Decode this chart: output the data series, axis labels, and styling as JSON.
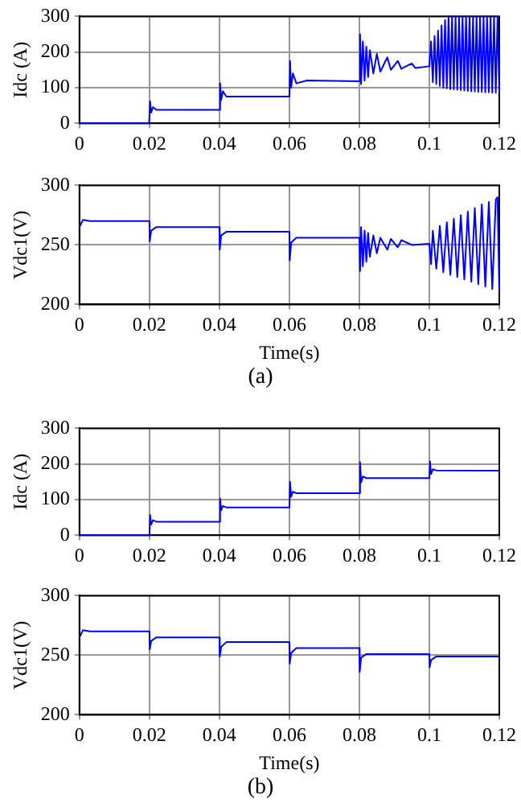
{
  "chart_data": [
    {
      "type": "line",
      "ylabel": "Idc (A)",
      "xlim": [
        0,
        0.12
      ],
      "ylim": [
        0,
        300
      ],
      "xticks": [
        0,
        0.02,
        0.04,
        0.06,
        0.08,
        0.1,
        0.12
      ],
      "yticks": [
        0,
        100,
        200,
        300
      ],
      "grid": true,
      "legend": false,
      "marker": "none",
      "line_style": "solid",
      "series": [
        {
          "color": "#0000ff",
          "x": [
            0,
            0.0199,
            0.02,
            0.0202,
            0.0205,
            0.021,
            0.022,
            0.04,
            0.0402,
            0.0405,
            0.041,
            0.042,
            0.06,
            0.0602,
            0.0605,
            0.061,
            0.062,
            0.065,
            0.08,
            0.0802,
            0.0805,
            0.081,
            0.0815,
            0.082,
            0.0825,
            0.083,
            0.084,
            0.085,
            0.086,
            0.088,
            0.089,
            0.091,
            0.092,
            0.095,
            0.096,
            0.1,
            0.1005,
            0.101,
            0.1015,
            0.102,
            0.1025,
            0.103,
            0.1035,
            0.104,
            0.1045,
            0.105,
            0.1055,
            0.106,
            0.1065,
            0.107,
            0.1075,
            0.108,
            0.1085,
            0.109,
            0.1095,
            0.11,
            0.1105,
            0.111,
            0.1115,
            0.112,
            0.1125,
            0.113,
            0.1135,
            0.114,
            0.1145,
            0.115,
            0.1155,
            0.116,
            0.1165,
            0.117,
            0.1175,
            0.118,
            0.1185,
            0.119,
            0.1195,
            0.12
          ],
          "values": [
            0,
            0,
            0,
            62,
            30,
            45,
            38,
            38,
            112,
            65,
            90,
            75,
            75,
            175,
            100,
            140,
            112,
            120,
            118,
            250,
            110,
            230,
            120,
            215,
            130,
            205,
            140,
            195,
            145,
            185,
            150,
            175,
            153,
            168,
            155,
            160,
            230,
            115,
            245,
            110,
            260,
            105,
            275,
            100,
            290,
            98,
            300,
            96,
            300,
            95,
            300,
            94,
            300,
            93,
            300,
            92,
            300,
            91,
            300,
            90,
            300,
            89,
            300,
            88,
            300,
            88,
            300,
            87,
            300,
            87,
            300,
            86,
            300,
            86,
            300,
            85
          ]
        }
      ]
    },
    {
      "type": "line",
      "xlabel": "Time(s)",
      "ylabel": "Vdc1(V)",
      "xlim": [
        0,
        0.12
      ],
      "ylim": [
        200,
        300
      ],
      "xticks": [
        0,
        0.02,
        0.04,
        0.06,
        0.08,
        0.1,
        0.12
      ],
      "yticks": [
        200,
        250,
        300
      ],
      "grid": true,
      "legend": false,
      "marker": "none",
      "line_style": "solid",
      "annotations": [
        "(a)"
      ],
      "series": [
        {
          "color": "#0000ff",
          "x": [
            0,
            0.001,
            0.003,
            0.02,
            0.0201,
            0.0205,
            0.022,
            0.04,
            0.0401,
            0.0405,
            0.042,
            0.06,
            0.0601,
            0.0605,
            0.062,
            0.08,
            0.0802,
            0.0805,
            0.081,
            0.0815,
            0.082,
            0.0825,
            0.083,
            0.084,
            0.085,
            0.086,
            0.088,
            0.089,
            0.091,
            0.092,
            0.095,
            0.1,
            0.1005,
            0.101,
            0.102,
            0.103,
            0.104,
            0.105,
            0.106,
            0.107,
            0.108,
            0.109,
            0.11,
            0.111,
            0.112,
            0.113,
            0.114,
            0.115,
            0.116,
            0.117,
            0.118,
            0.119,
            0.1195,
            0.12
          ],
          "values": [
            265,
            271,
            270,
            270,
            253,
            262,
            265,
            265,
            246,
            258,
            261,
            261,
            237,
            252,
            256,
            256,
            228,
            265,
            232,
            262,
            236,
            260,
            240,
            258,
            243,
            256,
            246,
            255,
            248,
            254,
            250,
            251,
            234,
            262,
            230,
            266,
            227,
            269,
            225,
            272,
            223,
            275,
            221,
            278,
            219,
            281,
            217,
            284,
            215,
            286,
            213,
            288,
            290,
            210
          ]
        }
      ]
    },
    {
      "type": "line",
      "ylabel": "Idc (A)",
      "xlim": [
        0,
        0.12
      ],
      "ylim": [
        0,
        300
      ],
      "xticks": [
        0,
        0.02,
        0.04,
        0.06,
        0.08,
        0.1,
        0.12
      ],
      "yticks": [
        0,
        100,
        200,
        300
      ],
      "grid": true,
      "legend": false,
      "marker": "none",
      "line_style": "solid",
      "series": [
        {
          "color": "#0000ff",
          "x": [
            0,
            0.02,
            0.0202,
            0.0205,
            0.021,
            0.022,
            0.04,
            0.0402,
            0.0405,
            0.041,
            0.042,
            0.06,
            0.0602,
            0.0605,
            0.061,
            0.062,
            0.08,
            0.0802,
            0.0805,
            0.081,
            0.082,
            0.1,
            0.1002,
            0.1005,
            0.101,
            0.102,
            0.12
          ],
          "values": [
            0,
            0,
            57,
            30,
            42,
            38,
            38,
            103,
            70,
            82,
            78,
            78,
            150,
            108,
            122,
            118,
            118,
            205,
            148,
            165,
            160,
            160,
            207,
            172,
            185,
            182,
            181
          ]
        }
      ]
    },
    {
      "type": "line",
      "xlabel": "Time(s)",
      "ylabel": "Vdc1(V)",
      "xlim": [
        0,
        0.12
      ],
      "ylim": [
        200,
        300
      ],
      "xticks": [
        0,
        0.02,
        0.04,
        0.06,
        0.08,
        0.1,
        0.12
      ],
      "yticks": [
        200,
        250,
        300
      ],
      "grid": true,
      "legend": false,
      "marker": "none",
      "line_style": "solid",
      "annotations": [
        "(b)"
      ],
      "series": [
        {
          "color": "#0000ff",
          "x": [
            0,
            0.001,
            0.003,
            0.02,
            0.0201,
            0.0205,
            0.022,
            0.04,
            0.0401,
            0.0405,
            0.042,
            0.06,
            0.0601,
            0.0605,
            0.062,
            0.08,
            0.0801,
            0.0805,
            0.082,
            0.1,
            0.1001,
            0.1005,
            0.102,
            0.12
          ],
          "values": [
            265,
            271,
            270,
            270,
            255,
            262,
            265,
            265,
            249,
            257,
            261,
            261,
            243,
            252,
            256,
            256,
            236,
            248,
            251,
            251,
            240,
            246,
            249,
            249
          ]
        }
      ]
    }
  ]
}
